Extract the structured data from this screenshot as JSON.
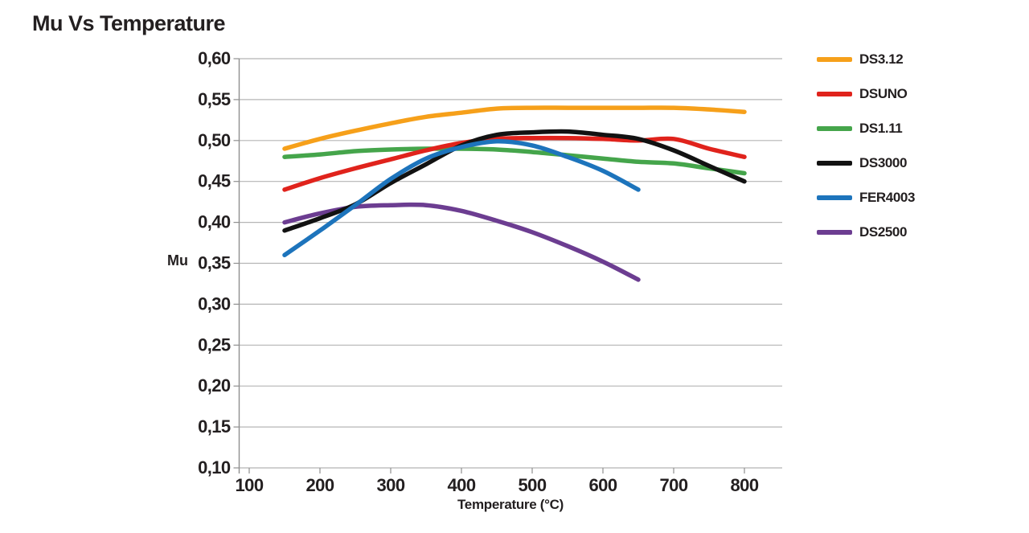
{
  "page": {
    "background": "#ffffff",
    "text_color": "#231f20",
    "grid_color": "#b5b5b5",
    "axis_color": "#8f8f8f"
  },
  "chart_data": {
    "type": "line",
    "title": "Mu Vs Temperature",
    "xlabel": "Temperature (°C)",
    "ylabel": "Mu",
    "decimal_separator": ",",
    "grid": "horizontal",
    "legend_position": "right",
    "xlim": [
      100,
      800
    ],
    "ylim": [
      0.1,
      0.6
    ],
    "xticks": [
      100,
      200,
      300,
      400,
      500,
      600,
      700,
      800
    ],
    "xtick_labels": [
      "100",
      "200",
      "300",
      "400",
      "500",
      "600",
      "700",
      "800"
    ],
    "yticks": [
      0.6,
      0.55,
      0.5,
      0.45,
      0.4,
      0.35,
      0.3,
      0.25,
      0.2,
      0.15,
      0.1
    ],
    "ytick_labels": [
      "0,60",
      "0,55",
      "0,50",
      "0,45",
      "0,40",
      "0,35",
      "0,30",
      "0,25",
      "0,20",
      "0,15",
      "0,10"
    ],
    "series": [
      {
        "name": "DS3.12",
        "color": "#F6A01A",
        "x": [
          150,
          200,
          250,
          300,
          350,
          400,
          450,
          500,
          550,
          600,
          650,
          700,
          750,
          800
        ],
        "values": [
          0.49,
          0.502,
          0.512,
          0.521,
          0.529,
          0.534,
          0.539,
          0.54,
          0.54,
          0.54,
          0.54,
          0.54,
          0.538,
          0.535
        ]
      },
      {
        "name": "DSUNO",
        "color": "#E0231C",
        "x": [
          150,
          200,
          250,
          300,
          350,
          400,
          450,
          500,
          550,
          600,
          650,
          700,
          750,
          800
        ],
        "values": [
          0.44,
          0.454,
          0.466,
          0.477,
          0.488,
          0.497,
          0.502,
          0.503,
          0.503,
          0.502,
          0.5,
          0.502,
          0.49,
          0.48
        ]
      },
      {
        "name": "DS1.11",
        "color": "#45A54B",
        "x": [
          150,
          200,
          250,
          300,
          350,
          400,
          450,
          500,
          550,
          600,
          650,
          700,
          750,
          800
        ],
        "values": [
          0.48,
          0.483,
          0.487,
          0.489,
          0.49,
          0.49,
          0.489,
          0.486,
          0.482,
          0.478,
          0.474,
          0.472,
          0.466,
          0.46
        ]
      },
      {
        "name": "DS3000",
        "color": "#121212",
        "x": [
          150,
          200,
          250,
          300,
          350,
          400,
          450,
          500,
          550,
          600,
          650,
          700,
          750,
          800
        ],
        "values": [
          0.39,
          0.405,
          0.422,
          0.448,
          0.471,
          0.494,
          0.507,
          0.51,
          0.511,
          0.507,
          0.502,
          0.488,
          0.469,
          0.45
        ]
      },
      {
        "name": "FER4003",
        "color": "#1D74BC",
        "x": [
          150,
          200,
          250,
          300,
          350,
          400,
          450,
          500,
          550,
          600,
          650
        ],
        "values": [
          0.36,
          0.39,
          0.421,
          0.453,
          0.478,
          0.492,
          0.499,
          0.494,
          0.48,
          0.463,
          0.44
        ]
      },
      {
        "name": "DS2500",
        "color": "#6C3D91",
        "x": [
          150,
          200,
          250,
          300,
          350,
          400,
          450,
          500,
          550,
          600,
          650
        ],
        "values": [
          0.4,
          0.411,
          0.419,
          0.421,
          0.421,
          0.414,
          0.402,
          0.388,
          0.371,
          0.352,
          0.33
        ]
      }
    ]
  }
}
